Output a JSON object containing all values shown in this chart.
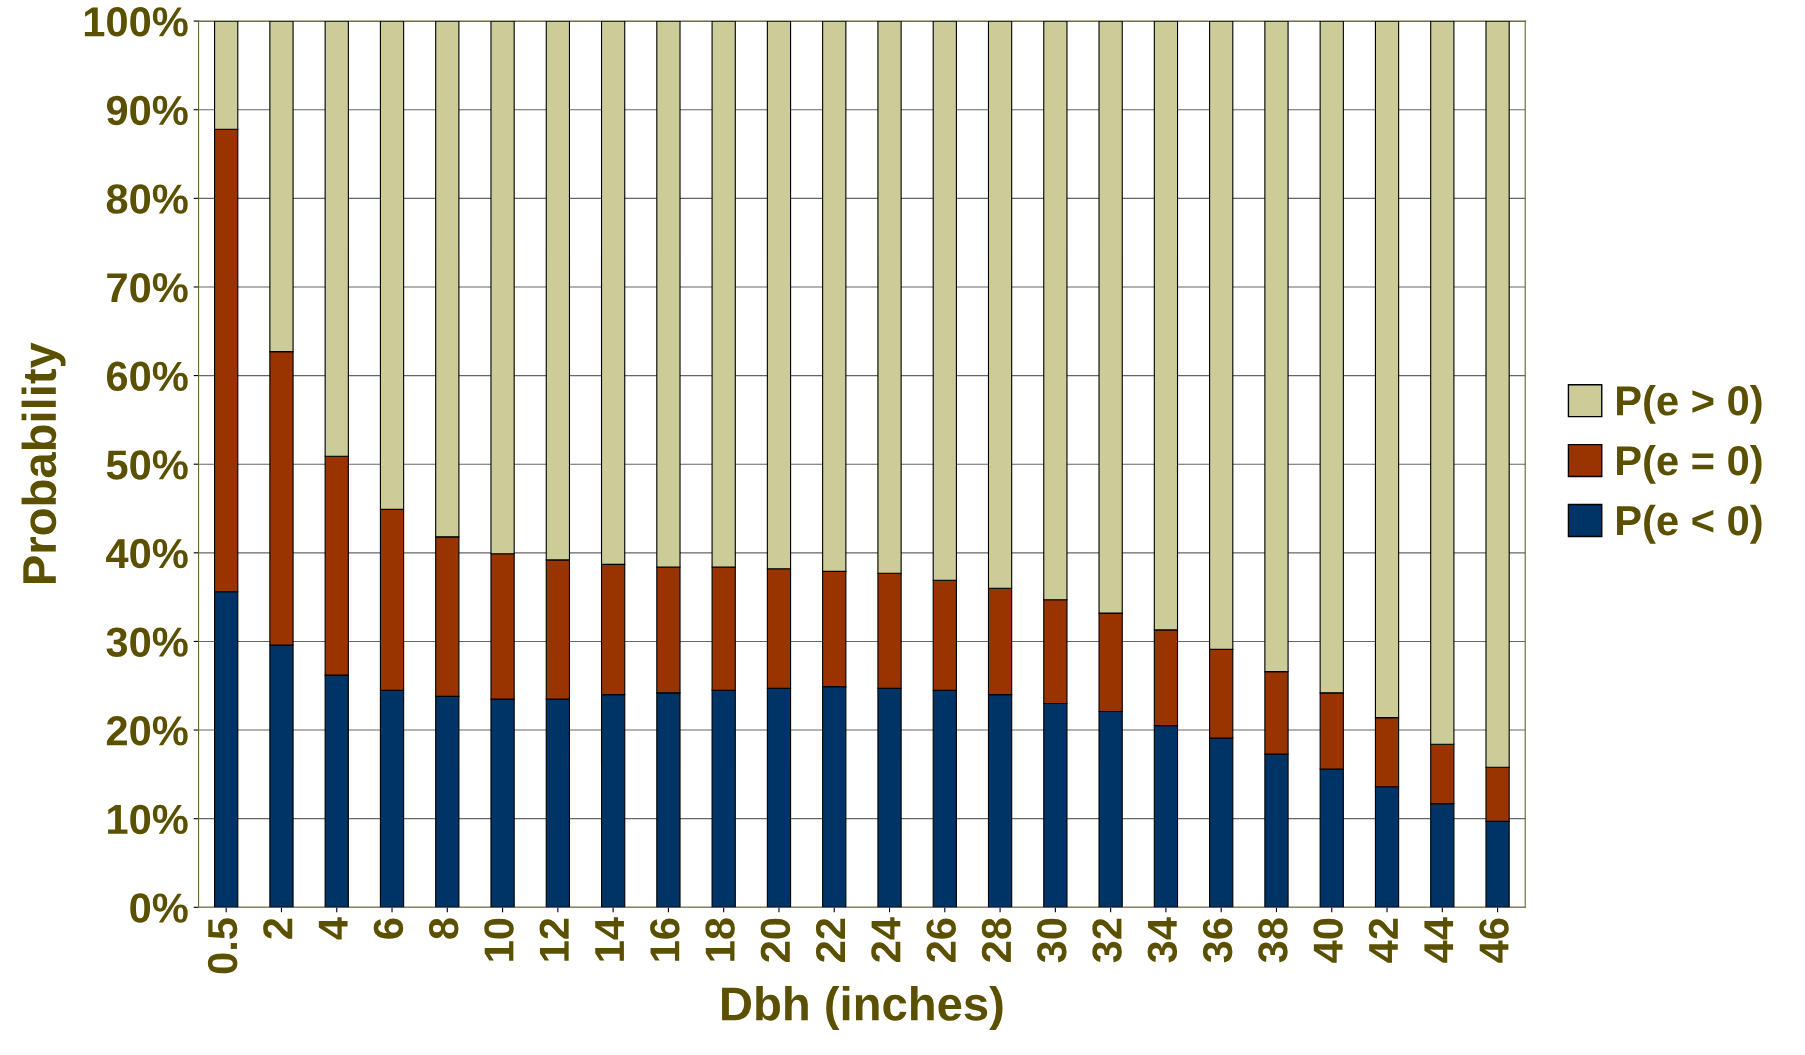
{
  "chart_data": {
    "type": "bar",
    "stacked": true,
    "xlabel": "Dbh (inches)",
    "ylabel": "Probability",
    "categories": [
      "0.5",
      "2",
      "4",
      "6",
      "8",
      "10",
      "12",
      "14",
      "16",
      "18",
      "20",
      "22",
      "24",
      "26",
      "28",
      "30",
      "32",
      "34",
      "36",
      "38",
      "40",
      "42",
      "44",
      "46"
    ],
    "series": [
      {
        "name": "P(e < 0)",
        "color": "#003366",
        "values": [
          35.6,
          29.6,
          26.2,
          24.5,
          23.8,
          23.5,
          23.5,
          24.0,
          24.2,
          24.5,
          24.7,
          24.9,
          24.7,
          24.5,
          24.0,
          23.0,
          22.1,
          20.5,
          19.1,
          17.3,
          15.6,
          13.6,
          11.7,
          9.7
        ]
      },
      {
        "name": "P(e = 0)",
        "color": "#993300",
        "values": [
          52.2,
          33.1,
          24.7,
          20.4,
          18.0,
          16.4,
          15.7,
          14.7,
          14.2,
          13.9,
          13.5,
          13.0,
          13.0,
          12.4,
          12.0,
          11.7,
          11.1,
          10.8,
          10.0,
          9.3,
          8.6,
          7.8,
          6.7,
          6.1
        ]
      },
      {
        "name": "P(e > 0)",
        "color": "#cccc99",
        "values": [
          12.2,
          37.3,
          49.1,
          55.1,
          58.2,
          60.1,
          60.8,
          61.3,
          61.6,
          61.6,
          61.8,
          62.1,
          62.3,
          63.1,
          64.0,
          65.3,
          66.8,
          68.7,
          70.9,
          73.4,
          75.8,
          78.6,
          81.6,
          84.2
        ]
      }
    ],
    "ylim": [
      0,
      100
    ],
    "yticks": [
      {
        "value": 0,
        "label": "0%"
      },
      {
        "value": 10,
        "label": "10%"
      },
      {
        "value": 20,
        "label": "20%"
      },
      {
        "value": 30,
        "label": "30%"
      },
      {
        "value": 40,
        "label": "40%"
      },
      {
        "value": 50,
        "label": "50%"
      },
      {
        "value": 60,
        "label": "60%"
      },
      {
        "value": 70,
        "label": "70%"
      },
      {
        "value": 80,
        "label": "80%"
      },
      {
        "value": 90,
        "label": "90%"
      },
      {
        "value": 100,
        "label": "100%"
      }
    ],
    "grid": "y",
    "legend": "right"
  }
}
